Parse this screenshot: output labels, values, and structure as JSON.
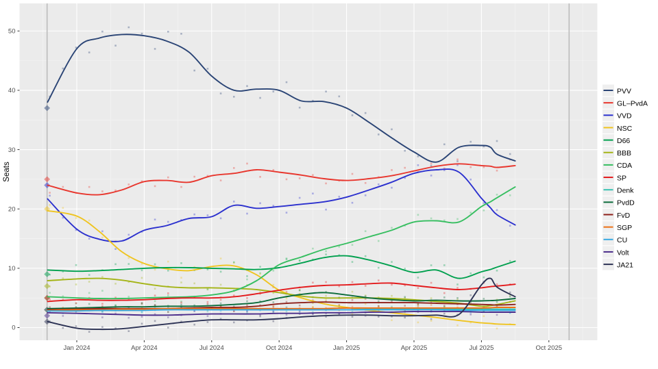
{
  "chart_data": {
    "type": "line",
    "title": "",
    "xlabel": "",
    "ylabel": "Seats",
    "ylim": [
      0,
      52
    ],
    "grid": true,
    "legend_position": "right",
    "panel_bg": "#EBEBEB",
    "grid_major_color": "#FFFFFF",
    "grid_minor_color": "#F4F4F4",
    "election_line_color": "#BCBCBC",
    "legend_key_bg": "#EFEFEF",
    "x_axis": {
      "tick_labels": [
        "Jan 2024",
        "Apr 2024",
        "Jul 2024",
        "Oct 2024",
        "Jan 2025",
        "Apr 2025",
        "Jul 2025",
        "Oct 2025"
      ],
      "tick_months": [
        0,
        3,
        6,
        9,
        12,
        15,
        18,
        21
      ],
      "minor_months": [
        -1.5,
        1.5,
        4.5,
        7.5,
        10.5,
        13.5,
        16.5,
        19.5,
        22.5
      ]
    },
    "y_axis": {
      "tick_labels": [
        "0",
        "10",
        "20",
        "30",
        "40",
        "50"
      ],
      "tick_values": [
        0,
        10,
        20,
        30,
        40,
        50
      ],
      "minor_values": [
        5,
        15,
        25,
        35,
        45
      ]
    },
    "event_lines_months": [
      -1.32,
      21.9
    ],
    "x_months": [
      -1.3,
      0,
      1,
      2,
      3,
      4,
      5,
      6,
      7,
      8,
      9,
      10,
      11,
      12,
      13,
      14,
      15,
      16,
      17,
      18,
      18.4,
      18.7,
      19.5
    ],
    "series": [
      {
        "name": "PVV",
        "color": "#2A4475",
        "election_seats": 37,
        "scatter_amp": 1.7,
        "values": [
          38,
          47,
          48.8,
          49.4,
          49.2,
          48.3,
          46.4,
          42.4,
          40.0,
          40.2,
          40.0,
          38.2,
          38.1,
          37.0,
          34.6,
          32.0,
          29.6,
          27.9,
          30.4,
          30.7,
          30.4,
          29.2,
          28.1
        ]
      },
      {
        "name": "GL–PvdA",
        "color": "#E8362D",
        "election_seats": 25,
        "scatter_amp": 0.9,
        "values": [
          24,
          22.7,
          22.4,
          23.2,
          24.6,
          24.8,
          24.5,
          25.6,
          26.0,
          26.6,
          26.2,
          25.7,
          25.1,
          24.8,
          25.1,
          25.6,
          26.4,
          27.2,
          27.6,
          27.3,
          27.2,
          27.0,
          27.3
        ]
      },
      {
        "name": "VVD",
        "color": "#2B30CE",
        "election_seats": 24,
        "scatter_amp": 1.1,
        "values": [
          21.7,
          16.6,
          14.9,
          14.6,
          16.4,
          17.2,
          18.4,
          18.7,
          20.6,
          20.1,
          20.4,
          20.8,
          21.2,
          22.0,
          23.2,
          24.5,
          26.0,
          26.6,
          26.2,
          21.8,
          20.2,
          19.0,
          17.3
        ]
      },
      {
        "name": "NSC",
        "color": "#EFC41F",
        "election_seats": 20,
        "scatter_amp": 1.0,
        "values": [
          19.7,
          18.8,
          16.2,
          12.8,
          10.8,
          9.9,
          9.6,
          10.3,
          10.4,
          8.9,
          6.3,
          5.0,
          4.0,
          3.4,
          2.9,
          2.5,
          2.1,
          1.7,
          1.2,
          0.8,
          0.7,
          0.6,
          0.5
        ]
      },
      {
        "name": "D66",
        "color": "#00A04E",
        "election_seats": 9,
        "scatter_amp": 0.9,
        "values": [
          9.7,
          9.5,
          9.6,
          9.8,
          10.0,
          10.1,
          10.1,
          10.0,
          9.9,
          9.8,
          10.1,
          10.9,
          11.8,
          12.1,
          11.4,
          10.4,
          9.3,
          9.7,
          8.3,
          9.4,
          9.8,
          10.2,
          11.2
        ]
      },
      {
        "name": "BBB",
        "color": "#A4B416",
        "election_seats": 7,
        "scatter_amp": 0.8,
        "values": [
          7.9,
          8.2,
          8.3,
          8.0,
          7.4,
          6.9,
          6.7,
          6.7,
          6.6,
          6.4,
          5.9,
          5.3,
          5.0,
          5.0,
          5.0,
          4.9,
          4.7,
          4.4,
          4.1,
          3.6,
          3.7,
          3.9,
          4.5
        ]
      },
      {
        "name": "CDA",
        "color": "#36BE60",
        "election_seats": 5,
        "scatter_amp": 0.9,
        "values": [
          5.2,
          5.0,
          4.9,
          4.9,
          5.0,
          5.1,
          5.2,
          5.5,
          6.2,
          7.9,
          10.6,
          11.9,
          13.2,
          14.2,
          15.3,
          16.4,
          17.8,
          18.0,
          17.8,
          20.4,
          21.2,
          21.9,
          23.7
        ]
      },
      {
        "name": "SP",
        "color": "#E31A1C",
        "election_seats": 5,
        "scatter_amp": 0.6,
        "values": [
          4.4,
          4.7,
          4.6,
          4.6,
          4.7,
          4.9,
          5.0,
          5.0,
          5.2,
          5.7,
          6.3,
          6.8,
          7.1,
          7.2,
          7.4,
          7.5,
          7.1,
          6.7,
          6.4,
          6.7,
          6.9,
          7.0,
          7.3
        ]
      },
      {
        "name": "Denk",
        "color": "#38C2B2",
        "election_seats": 3,
        "scatter_amp": 0.45,
        "values": [
          3.0,
          2.9,
          2.9,
          2.9,
          3.0,
          3.1,
          3.2,
          3.2,
          3.1,
          3.0,
          3.0,
          3.0,
          3.0,
          3.0,
          3.1,
          3.1,
          3.1,
          3.1,
          3.1,
          3.1,
          3.1,
          3.1,
          3.1
        ]
      },
      {
        "name": "PvdD",
        "color": "#0B6B3A",
        "election_seats": 3,
        "scatter_amp": 0.5,
        "values": [
          3.2,
          3.3,
          3.4,
          3.5,
          3.5,
          3.6,
          3.6,
          3.7,
          3.9,
          4.2,
          5.0,
          5.6,
          5.9,
          5.5,
          5.0,
          4.7,
          4.5,
          4.6,
          4.5,
          4.5,
          4.55,
          4.6,
          4.9
        ]
      },
      {
        "name": "FvD",
        "color": "#8E1F1A",
        "election_seats": 3,
        "scatter_amp": 0.45,
        "values": [
          3.0,
          3.1,
          3.2,
          3.2,
          3.2,
          3.2,
          3.3,
          3.4,
          3.4,
          3.6,
          4.0,
          4.2,
          4.3,
          4.2,
          4.2,
          4.2,
          4.2,
          4.1,
          4.0,
          3.9,
          3.85,
          3.8,
          3.9
        ]
      },
      {
        "name": "SGP",
        "color": "#EC7014",
        "election_seats": 3,
        "scatter_amp": 0.35,
        "values": [
          2.9,
          3.0,
          3.0,
          3.1,
          3.1,
          3.2,
          3.2,
          3.2,
          3.2,
          3.2,
          3.2,
          3.2,
          3.2,
          3.3,
          3.3,
          3.3,
          3.3,
          3.3,
          3.3,
          3.3,
          3.35,
          3.4,
          3.4
        ]
      },
      {
        "name": "CU",
        "color": "#37A9E1",
        "election_seats": 3,
        "scatter_amp": 0.35,
        "values": [
          2.8,
          2.8,
          2.9,
          2.9,
          2.9,
          3.0,
          3.0,
          3.0,
          3.0,
          3.0,
          3.0,
          3.0,
          3.0,
          3.0,
          3.0,
          3.0,
          3.0,
          3.0,
          2.9,
          2.9,
          2.9,
          2.9,
          2.9
        ]
      },
      {
        "name": "Volt",
        "color": "#4B2D8B",
        "election_seats": 2,
        "scatter_amp": 0.45,
        "values": [
          2.5,
          2.4,
          2.3,
          2.2,
          2.1,
          2.1,
          2.2,
          2.3,
          2.3,
          2.3,
          2.4,
          2.4,
          2.5,
          2.5,
          2.6,
          2.6,
          2.7,
          2.7,
          2.7,
          2.6,
          2.6,
          2.6,
          2.6
        ]
      },
      {
        "name": "JA21",
        "color": "#2C3254",
        "election_seats": 1,
        "scatter_amp": 0.5,
        "values": [
          1.0,
          -0.1,
          -0.3,
          -0.2,
          0.2,
          0.6,
          1.0,
          1.3,
          1.3,
          1.3,
          1.5,
          1.8,
          2.0,
          2.1,
          2.1,
          2.0,
          2.0,
          2.1,
          2.2,
          7.2,
          8.3,
          6.8,
          5.2
        ]
      }
    ],
    "election_marker_month": -1.32,
    "scatter_offsets": [
      0.15,
      -0.6,
      0.95,
      0.35,
      -1.05,
      0.55,
      1.25,
      -0.35,
      -0.85,
      1.0,
      0.25,
      -1.3,
      0.7,
      -0.15,
      1.45,
      -0.95,
      0.45,
      -0.55,
      1.15,
      -1.25,
      0.6,
      -0.05,
      0.85,
      -0.75,
      0.3,
      -1.0,
      1.3,
      -0.45,
      0.05,
      -1.15,
      0.75,
      0.5,
      -0.25,
      1.05,
      -0.65,
      0.2
    ]
  }
}
